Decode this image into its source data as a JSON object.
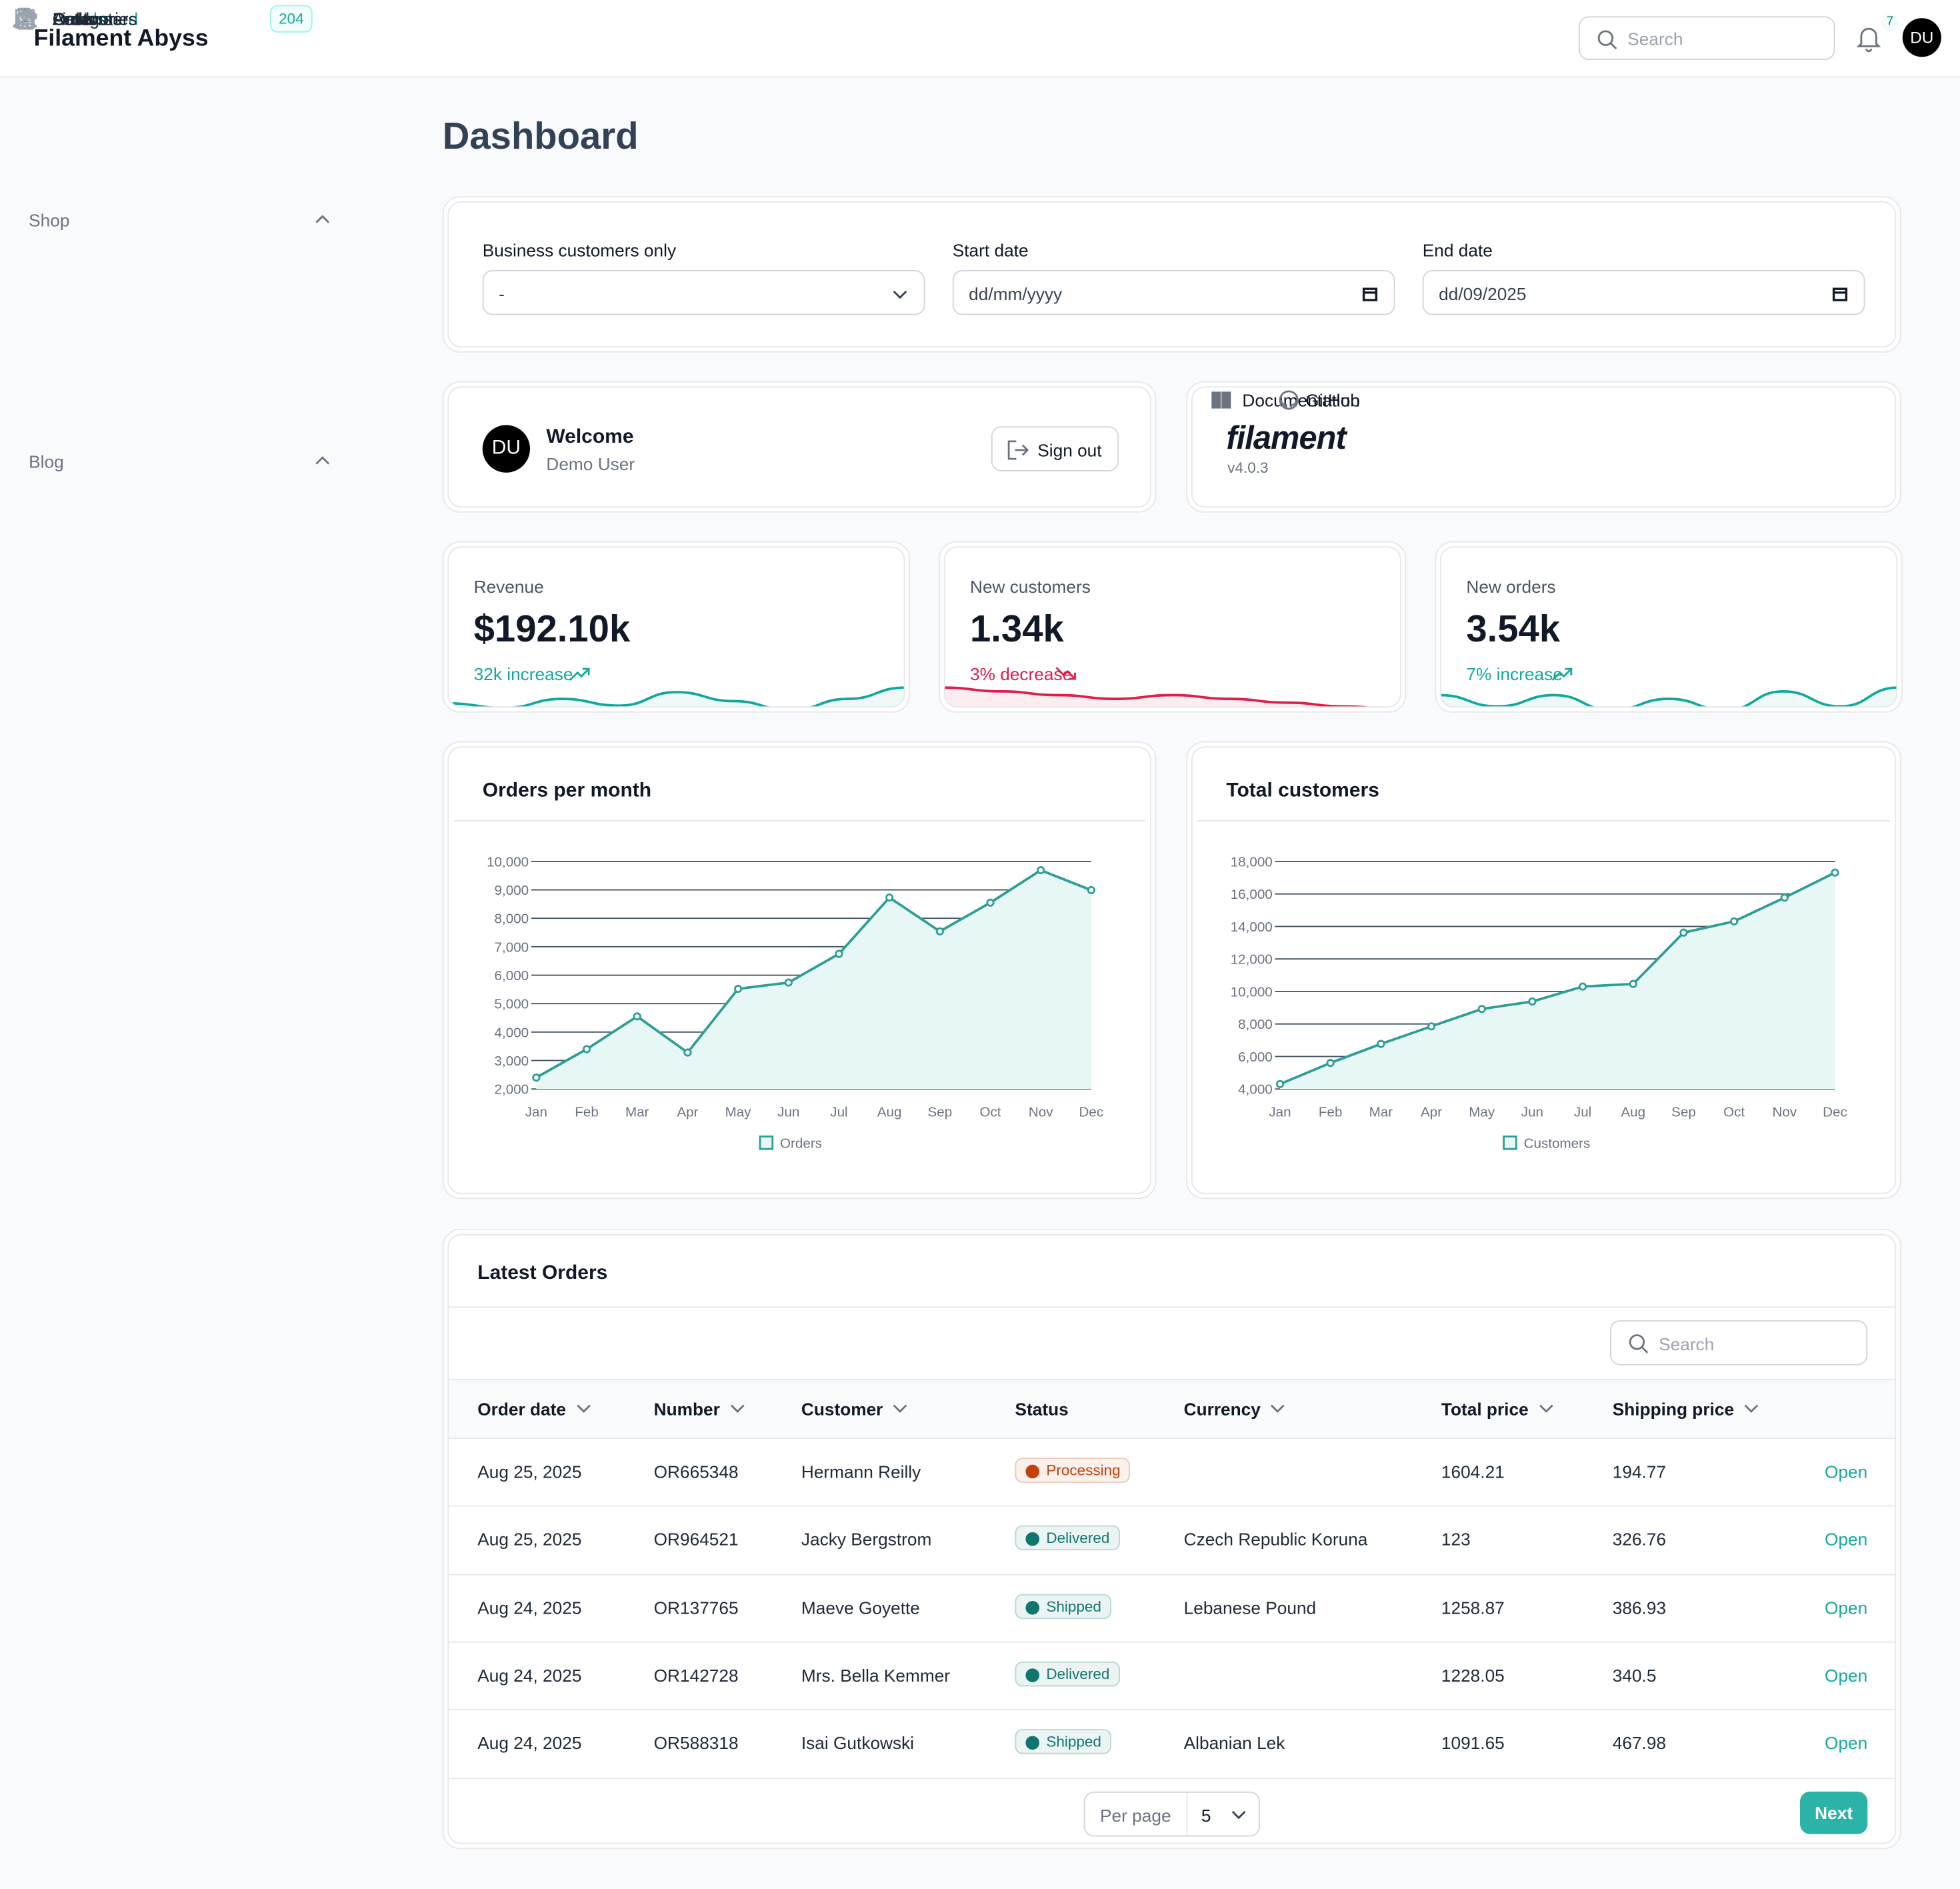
{
  "header": {
    "brand": "Filament Abyss",
    "search_placeholder": "Search",
    "notification_count": 7,
    "avatar": "DU"
  },
  "sidebar": {
    "items": [
      {
        "label": "Dashboard"
      }
    ],
    "groups": [
      {
        "label": "Shop",
        "items": [
          {
            "label": "Products"
          },
          {
            "label": "Orders",
            "badge": 204
          },
          {
            "label": "Customers"
          }
        ]
      },
      {
        "label": "Blog",
        "items": [
          {
            "label": "Posts"
          },
          {
            "label": "Categories"
          },
          {
            "label": "Authors"
          },
          {
            "label": "Links"
          }
        ]
      }
    ]
  },
  "page_title": "Dashboard",
  "filters": [
    {
      "label": "Business customers only",
      "value": "-"
    },
    {
      "label": "Start date",
      "value": "dd/mm/yyyy"
    },
    {
      "label": "End date",
      "value": "dd/09/2025"
    }
  ],
  "welcome": {
    "avatar": "DU",
    "title": "Welcome",
    "user": "Demo User",
    "button": "Sign out"
  },
  "filament": {
    "logo": "filament",
    "version": "v4.0.3",
    "links": [
      "Documentation",
      "GitHub"
    ]
  },
  "stats": [
    {
      "label": "Revenue",
      "value": "$192.10k",
      "change": "32k increase",
      "trend": "up",
      "color": "#14a89c",
      "sparkline": [
        4,
        2,
        6,
        3,
        9,
        5,
        1,
        6,
        11
      ]
    },
    {
      "label": "New customers",
      "value": "1.34k",
      "change": "3% decrease",
      "trend": "down",
      "color": "#e11d48",
      "sparkline": [
        10,
        9,
        8,
        7,
        8,
        7,
        6,
        5,
        4
      ]
    },
    {
      "label": "New orders",
      "value": "3.54k",
      "change": "7% increase",
      "trend": "up",
      "color": "#14a89c",
      "sparkline": [
        6,
        3,
        6,
        2,
        5,
        2,
        7,
        3,
        8
      ]
    }
  ],
  "charts": [
    {
      "type": "line",
      "title": "Orders per month",
      "categories": [
        "Jan",
        "Feb",
        "Mar",
        "Apr",
        "May",
        "Jun",
        "Jul",
        "Aug",
        "Sep",
        "Oct",
        "Nov",
        "Dec"
      ],
      "series": [
        {
          "name": "Orders",
          "color": "#2f9e95",
          "values": [
            2400,
            3400,
            4550,
            3280,
            5520,
            5740,
            6750,
            8730,
            7540,
            8550,
            9690,
            8990
          ]
        }
      ],
      "ylim": [
        2000,
        10000
      ],
      "grid": true,
      "yticks": [
        {
          "value": 2000,
          "label": "2,000"
        },
        {
          "value": 3000,
          "label": "3,000"
        },
        {
          "value": 4000,
          "label": "4,000"
        },
        {
          "value": 5000,
          "label": "5,000"
        },
        {
          "value": 6000,
          "label": "6,000"
        },
        {
          "value": 7000,
          "label": "7,000"
        },
        {
          "value": 8000,
          "label": "8,000"
        },
        {
          "value": 9000,
          "label": "9,000"
        },
        {
          "value": 10000,
          "label": "10,000"
        }
      ]
    },
    {
      "type": "line",
      "title": "Total customers",
      "categories": [
        "Jan",
        "Feb",
        "Mar",
        "Apr",
        "May",
        "Jun",
        "Jul",
        "Aug",
        "Sep",
        "Oct",
        "Nov",
        "Dec"
      ],
      "series": [
        {
          "name": "Customers",
          "color": "#2f9e95",
          "values": [
            4300,
            5600,
            6770,
            7850,
            8920,
            9380,
            10300,
            10460,
            13620,
            14310,
            15770,
            17310
          ]
        }
      ],
      "ylim": [
        4000,
        18000
      ],
      "grid": true,
      "yticks": [
        {
          "value": 4000,
          "label": "4,000"
        },
        {
          "value": 6000,
          "label": "6,000"
        },
        {
          "value": 8000,
          "label": "8,000"
        },
        {
          "value": 10000,
          "label": "10,000"
        },
        {
          "value": 12000,
          "label": "12,000"
        },
        {
          "value": 14000,
          "label": "14,000"
        },
        {
          "value": 16000,
          "label": "16,000"
        },
        {
          "value": 18000,
          "label": "18,000"
        }
      ]
    }
  ],
  "orders_table": {
    "title": "Latest Orders",
    "search_placeholder": "Search",
    "columns": [
      {
        "label": "Order date",
        "sortable": true
      },
      {
        "label": "Number",
        "sortable": true
      },
      {
        "label": "Customer",
        "sortable": true
      },
      {
        "label": "Status",
        "sortable": false
      },
      {
        "label": "Currency",
        "sortable": true
      },
      {
        "label": "Total price",
        "sortable": true
      },
      {
        "label": "Shipping price",
        "sortable": true
      }
    ],
    "rows": [
      [
        "Aug 25, 2025",
        "OR665348",
        "Hermann Reilly",
        {
          "label": "Processing",
          "color": "#c2410c"
        },
        null,
        "1604.21",
        "194.77"
      ],
      [
        "Aug 25, 2025",
        "OR964521",
        "Jacky Bergstrom",
        {
          "label": "Delivered",
          "color": "#0f766e"
        },
        "Czech Republic Koruna",
        "123",
        "326.76"
      ],
      [
        "Aug 24, 2025",
        "OR137765",
        "Maeve Goyette",
        {
          "label": "Shipped",
          "color": "#0f766e"
        },
        "Lebanese Pound",
        "1258.87",
        "386.93"
      ],
      [
        "Aug 24, 2025",
        "OR142728",
        "Mrs. Bella Kemmer",
        {
          "label": "Delivered",
          "color": "#0f766e"
        },
        null,
        "1228.05",
        "340.5"
      ],
      [
        "Aug 24, 2025",
        "OR588318",
        "Isai Gutkowski",
        {
          "label": "Shipped",
          "color": "#0f766e"
        },
        "Albanian Lek",
        "1091.65",
        "467.98"
      ]
    ],
    "action": "Open",
    "per_page_label": "Per page",
    "per_page": 5,
    "next": "Next"
  }
}
